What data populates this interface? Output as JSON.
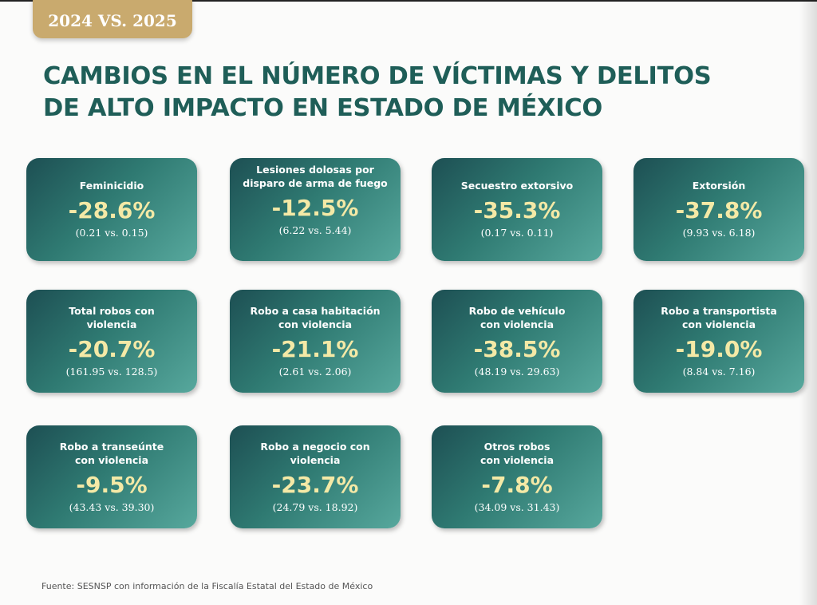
{
  "badge": "2024 VS. 2025",
  "title": {
    "line1": "CAMBIOS EN EL NÚMERO DE VÍCTIMAS Y DELITOS",
    "line2": "DE ALTO IMPACTO EN ESTADO DE MÉXICO"
  },
  "cards": [
    {
      "label": "Feminicidio",
      "change": "-28.6%",
      "comparison": "(0.21 vs. 0.15)"
    },
    {
      "label": "Lesiones dolosas por disparo de arma de fuego",
      "change": "-12.5%",
      "comparison": "(6.22 vs. 5.44)"
    },
    {
      "label": "Secuestro extorsivo",
      "change": "-35.3%",
      "comparison": "(0.17 vs. 0.11)"
    },
    {
      "label": "Extorsión",
      "change": "-37.8%",
      "comparison": "(9.93 vs. 6.18)"
    },
    {
      "label": "Total robos con violencia",
      "change": "-20.7%",
      "comparison": "(161.95 vs. 128.5)"
    },
    {
      "label": "Robo a casa habitación con violencia",
      "change": "-21.1%",
      "comparison": "(2.61 vs. 2.06)"
    },
    {
      "label": "Robo de vehículo con violencia",
      "change": "-38.5%",
      "comparison": "(48.19 vs. 29.63)"
    },
    {
      "label": "Robo a transportista con violencia",
      "change": "-19.0%",
      "comparison": "(8.84 vs. 7.16)"
    },
    {
      "label": "Robo a transeúnte con violencia",
      "change": "-9.5%",
      "comparison": "(43.43 vs. 39.30)"
    },
    {
      "label": "Robo a negocio con violencia",
      "change": "-23.7%",
      "comparison": "(24.79 vs. 18.92)"
    },
    {
      "label": "Otros robos con violencia",
      "change": "-7.8%",
      "comparison": "(34.09 vs. 31.43)"
    }
  ],
  "source": "Fuente: SESNSP con información de la Fiscalía Estatal del Estado de México"
}
